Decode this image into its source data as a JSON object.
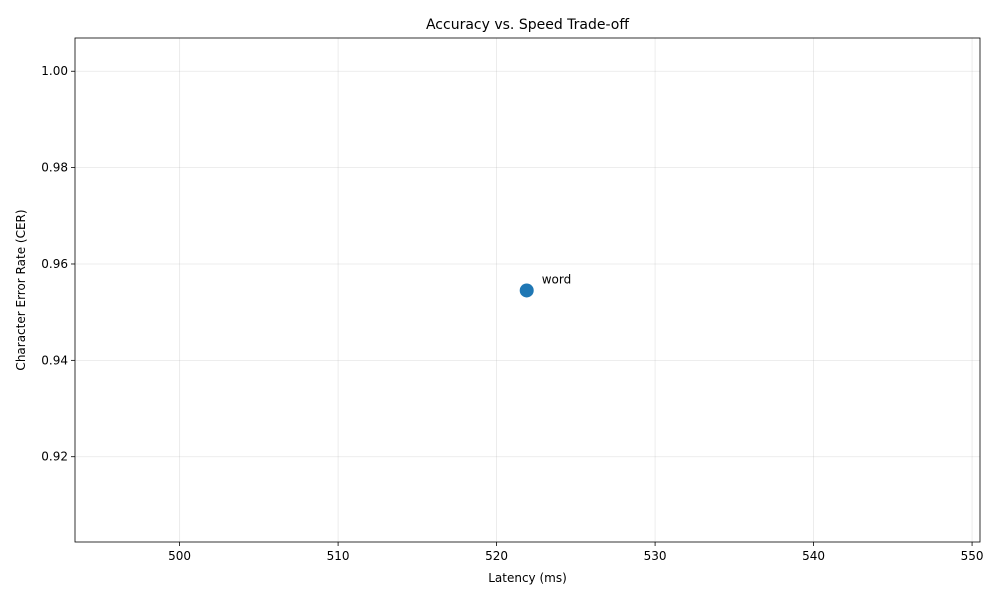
{
  "chart_data": {
    "type": "scatter",
    "title": "Accuracy vs. Speed Trade-off",
    "xlabel": "Latency (ms)",
    "ylabel": "Character Error Rate (CER)",
    "xlim": [
      493.4,
      550.5
    ],
    "ylim": [
      0.9023,
      1.0069
    ],
    "xticks": [
      500,
      510,
      520,
      530,
      540,
      550
    ],
    "yticks": [
      0.92,
      0.94,
      0.96,
      0.98,
      1.0
    ],
    "grid": true,
    "points": [
      {
        "x": 521.9,
        "y": 0.9545,
        "label": "word"
      }
    ],
    "colors": {
      "point": "#1f77b4"
    }
  }
}
